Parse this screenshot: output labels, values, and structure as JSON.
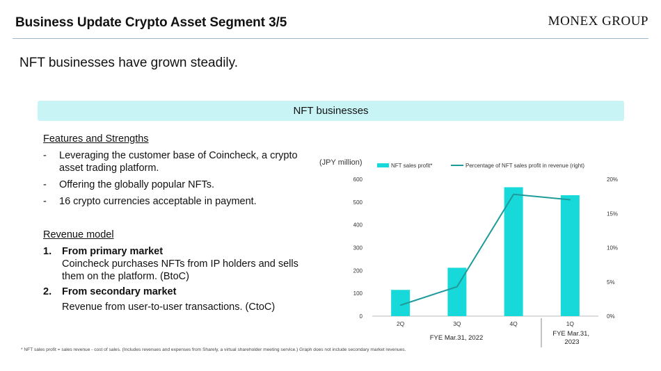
{
  "header": {
    "title": "Business Update Crypto Asset Segment 3/5",
    "brand": "MONEX GROUP"
  },
  "subtitle": "NFT businesses have grown steadily.",
  "banner": "NFT businesses",
  "features": {
    "heading": "Features and Strengths",
    "items": [
      {
        "marker": "-",
        "text": "Leveraging the customer base of Coincheck, a crypto asset trading platform."
      },
      {
        "marker": "-",
        "text": "Offering the globally popular NFTs."
      },
      {
        "marker": "-",
        "text": "16 crypto currencies acceptable in payment."
      }
    ]
  },
  "revenue": {
    "heading": "Revenue model",
    "items": [
      {
        "marker": "1.",
        "title": "From primary market",
        "desc": "Coincheck purchases NFTs from IP holders and sells them on the platform. (BtoC)"
      },
      {
        "marker": "2.",
        "title": "From secondary market",
        "desc": "Revenue from user-to-user transactions. (CtoC)"
      }
    ]
  },
  "footnote": "* NFT sales profit = sales revenue - cost of sales. (Includes  revenues and expenses from Sharely, a virtual shareholder meeting service.) Graph does not include secondary market revenues.",
  "chart_data": {
    "type": "bar",
    "unit_label": "(JPY million)",
    "categories": [
      "2Q",
      "3Q",
      "4Q",
      "1Q"
    ],
    "period_labels": [
      {
        "text": "FYE Mar.31, 2022",
        "covers": [
          "2Q",
          "3Q",
          "4Q"
        ]
      },
      {
        "text": "FYE Mar.31, 2023",
        "covers": [
          "1Q"
        ]
      }
    ],
    "series": [
      {
        "name": "NFT sales profit*",
        "type": "bar",
        "axis": "left",
        "color": "#17d9d9",
        "values": [
          115,
          212,
          565,
          530
        ]
      },
      {
        "name": "Percentage of NFT sales profit in revenue (right)",
        "type": "line",
        "axis": "right",
        "color": "#1f9a9a",
        "values": [
          1.6,
          4.3,
          17.8,
          17.0
        ]
      }
    ],
    "ylim_left": [
      0,
      600
    ],
    "yticks_left": [
      "0",
      "100",
      "200",
      "300",
      "400",
      "500",
      "600"
    ],
    "ylim_right": [
      0,
      20
    ],
    "yticks_right": [
      "0%",
      "5%",
      "10%",
      "15%",
      "20%"
    ],
    "grid": false,
    "legend": "top"
  }
}
